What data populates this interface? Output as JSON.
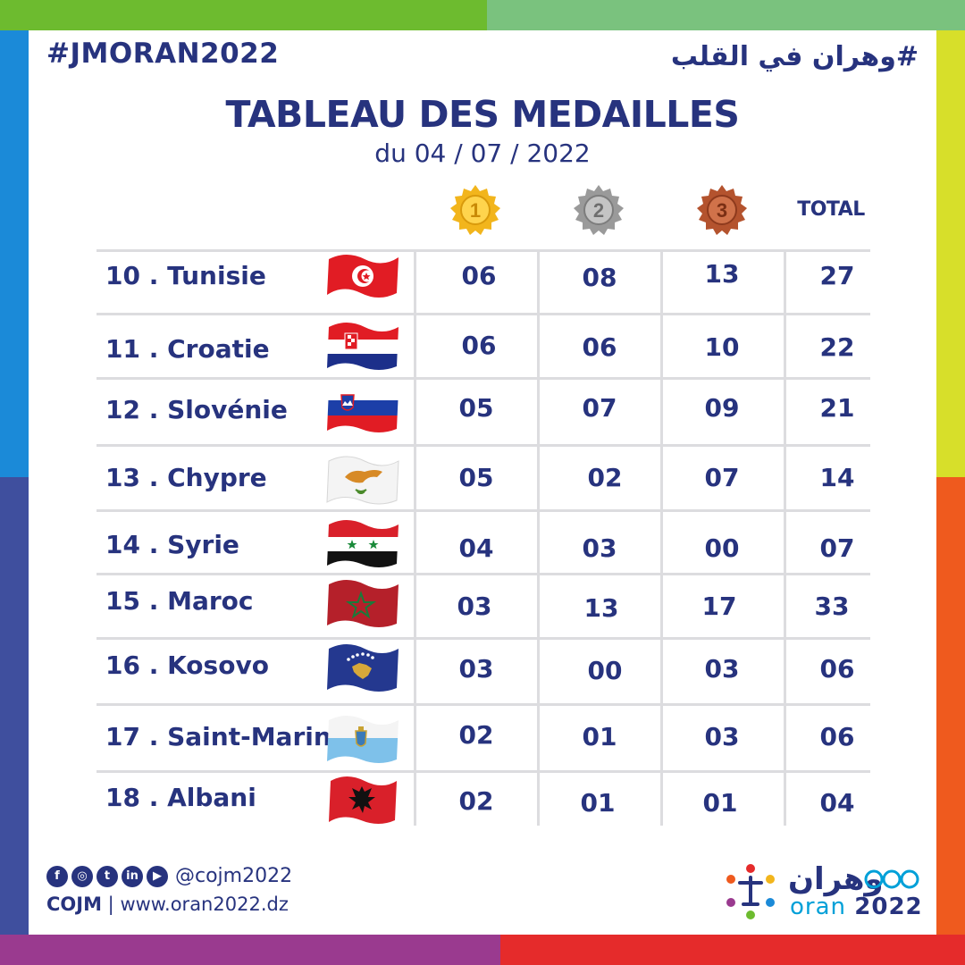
{
  "header": {
    "hashtag": "#JMORAN2022",
    "arabic_hashtag": "#وهران في القلب",
    "title": "TABLEAU DES MEDAILLES",
    "subtitle": "du 04 / 07 / 2022"
  },
  "columns": {
    "gold_icon": "gold-medal-icon",
    "silver_icon": "silver-medal-icon",
    "bronze_icon": "bronze-medal-icon",
    "gold_rank": "1",
    "silver_rank": "2",
    "bronze_rank": "3",
    "total_label": "TOTAL"
  },
  "rows": [
    {
      "country": "10 . Tunisie",
      "flag": "tunisia-flag",
      "gold": "06",
      "silver": "08",
      "bronze": "13",
      "total": "27"
    },
    {
      "country": "11 . Croatie",
      "flag": "croatia-flag",
      "gold": "06",
      "silver": "06",
      "bronze": "10",
      "total": "22"
    },
    {
      "country": "12 . Slovénie",
      "flag": "slovenia-flag",
      "gold": "05",
      "silver": "07",
      "bronze": "09",
      "total": "21"
    },
    {
      "country": "13 . Chypre",
      "flag": "cyprus-flag",
      "gold": "05",
      "silver": "02",
      "bronze": "07",
      "total": "14"
    },
    {
      "country": "14 . Syrie",
      "flag": "syria-flag",
      "gold": "04",
      "silver": "03",
      "bronze": "00",
      "total": "07"
    },
    {
      "country": "15 . Maroc",
      "flag": "morocco-flag",
      "gold": "03",
      "silver": "13",
      "bronze": "17",
      "total": "33"
    },
    {
      "country": "16 . Kosovo",
      "flag": "kosovo-flag",
      "gold": "03",
      "silver": "00",
      "bronze": "03",
      "total": "06"
    },
    {
      "country": "17 . Saint-Marin",
      "flag": "san-marino-flag",
      "gold": "02",
      "silver": "01",
      "bronze": "03",
      "total": "06"
    },
    {
      "country": "18 . Albani",
      "flag": "albania-flag",
      "gold": "02",
      "silver": "01",
      "bronze": "01",
      "total": "04"
    }
  ],
  "footer": {
    "social_icons": [
      "facebook-icon",
      "instagram-icon",
      "twitter-icon",
      "linkedin-icon",
      "youtube-icon"
    ],
    "handle": "@cojm2022",
    "org": "COJM",
    "website": "www.oran2022.dz",
    "logo_arabic": "وهران",
    "logo_latin": "oran",
    "logo_year": "2022"
  },
  "colors": {
    "text": "#27337e",
    "grid": "#dcdcdf",
    "gold": "#f2b51c",
    "silver": "#9a9a9a",
    "bronze": "#b4532e",
    "frame_green_left": "#6dbb2f",
    "frame_green_right": "#7ac27e",
    "frame_blue": "#1b8ad8",
    "frame_indigo": "#3f4f9e",
    "frame_yellow": "#d7df2a",
    "frame_orange": "#ef5a1e",
    "frame_purple": "#9a3a8f",
    "frame_red": "#e52b2b"
  }
}
